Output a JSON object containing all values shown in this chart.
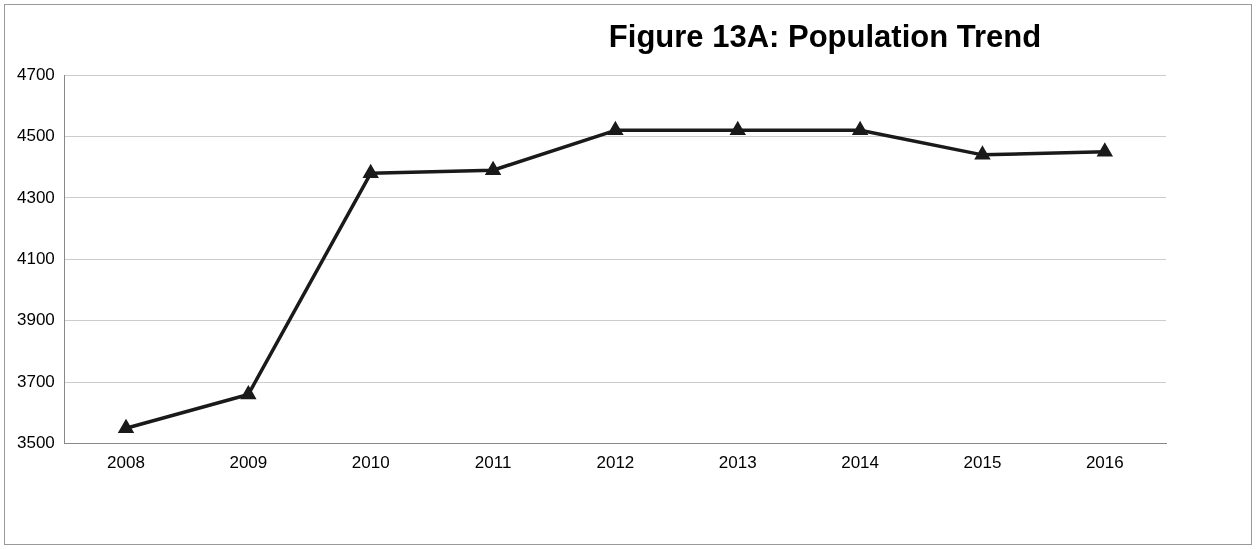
{
  "chart_data": {
    "type": "line",
    "title": "Figure 13A: Population Trend",
    "categories": [
      "2008",
      "2009",
      "2010",
      "2011",
      "2012",
      "2013",
      "2014",
      "2015",
      "2016"
    ],
    "series": [
      {
        "color": "#1a1a1a",
        "values": [
          3550,
          3660,
          4380,
          4390,
          4520,
          4520,
          4520,
          4440,
          4450
        ]
      }
    ],
    "ylim": [
      3500,
      4700
    ],
    "yticks": [
      3500,
      3700,
      3900,
      4100,
      4300,
      4500,
      4700
    ],
    "grid": "y",
    "legend": false,
    "marker": "triangle",
    "line_style": "solid"
  }
}
